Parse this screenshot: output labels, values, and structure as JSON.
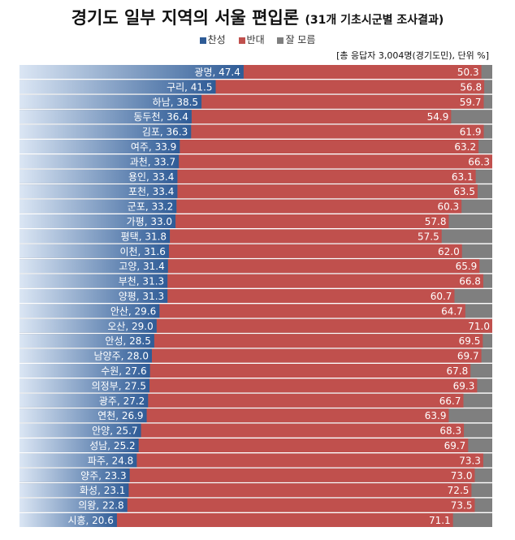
{
  "title": "경기도 일부 지역의 서울 편입론",
  "subtitle": "(31개 기초시군별 조사결과)",
  "note": "[총 응답자 3,004명(경기도민), 단위 %]",
  "colors": {
    "support": "#2e5b96",
    "support_light": "#dbe6f4",
    "oppose": "#c0504d",
    "unknown": "#7f7f7f"
  },
  "legend": [
    {
      "name": "찬성",
      "color": "#2e5b96"
    },
    {
      "name": "반대",
      "color": "#c0504d"
    },
    {
      "name": "잘 모름",
      "color": "#7f7f7f"
    }
  ],
  "chart_data": {
    "type": "bar",
    "orientation": "horizontal-stacked",
    "xlim": [
      0,
      100
    ],
    "categories": [
      "광명",
      "구리",
      "하남",
      "동두천",
      "김포",
      "여주",
      "과천",
      "용인",
      "포천",
      "군포",
      "가평",
      "평택",
      "이천",
      "고양",
      "부천",
      "양평",
      "안산",
      "오산",
      "안성",
      "남양주",
      "수원",
      "의정부",
      "광주",
      "연천",
      "안양",
      "성남",
      "파주",
      "양주",
      "화성",
      "의왕",
      "시흥"
    ],
    "series": [
      {
        "name": "찬성",
        "values": [
          47.4,
          41.5,
          38.5,
          36.4,
          36.3,
          33.9,
          33.7,
          33.4,
          33.4,
          33.2,
          33.0,
          31.8,
          31.6,
          31.4,
          31.3,
          31.3,
          29.6,
          29.0,
          28.5,
          28.0,
          27.6,
          27.5,
          27.2,
          26.9,
          25.7,
          25.2,
          24.8,
          23.3,
          23.1,
          22.8,
          20.6
        ]
      },
      {
        "name": "반대",
        "values": [
          50.3,
          56.8,
          59.7,
          54.9,
          61.9,
          63.2,
          66.3,
          63.1,
          63.5,
          60.3,
          57.8,
          57.5,
          62.0,
          65.9,
          66.8,
          60.7,
          64.7,
          71.0,
          69.5,
          69.7,
          67.8,
          69.3,
          66.7,
          63.9,
          68.3,
          69.7,
          73.3,
          73.0,
          72.5,
          73.5,
          71.1
        ]
      }
    ],
    "support_labels": [
      "광명, 47.4",
      "구리, 41.5",
      "하남, 38.5",
      "동두천, 36.4",
      "김포, 36.3",
      "여주, 33.9",
      "과천, 33.7",
      "용인, 33.4",
      "포천, 33.4",
      "군포, 33.2",
      "가평, 33.0",
      "평택, 31.8",
      "이천, 31.6",
      "고양, 31.4",
      "부천, 31.3",
      "양평, 31.3",
      "안산, 29.6",
      "오산, 29.0",
      "안성, 28.5",
      "남양주, 28.0",
      "수원, 27.6",
      "의정부, 27.5",
      "광주, 27.2",
      "연천, 26.9",
      "안양, 25.7",
      "성남, 25.2",
      "파주, 24.8",
      "양주, 23.3",
      "화성, 23.1",
      "의왕, 22.8",
      "시흥, 20.6"
    ],
    "oppose_labels": [
      "50.3",
      "56.8",
      "59.7",
      "54.9",
      "61.9",
      "63.2",
      "66.3",
      "63.1",
      "63.5",
      "60.3",
      "57.8",
      "57.5",
      "62.0",
      "65.9",
      "66.8",
      "60.7",
      "64.7",
      "71.0",
      "69.5",
      "69.7",
      "67.8",
      "69.3",
      "66.7",
      "63.9",
      "68.3",
      "69.7",
      "73.3",
      "73.0",
      "72.5",
      "73.5",
      "71.1"
    ]
  }
}
